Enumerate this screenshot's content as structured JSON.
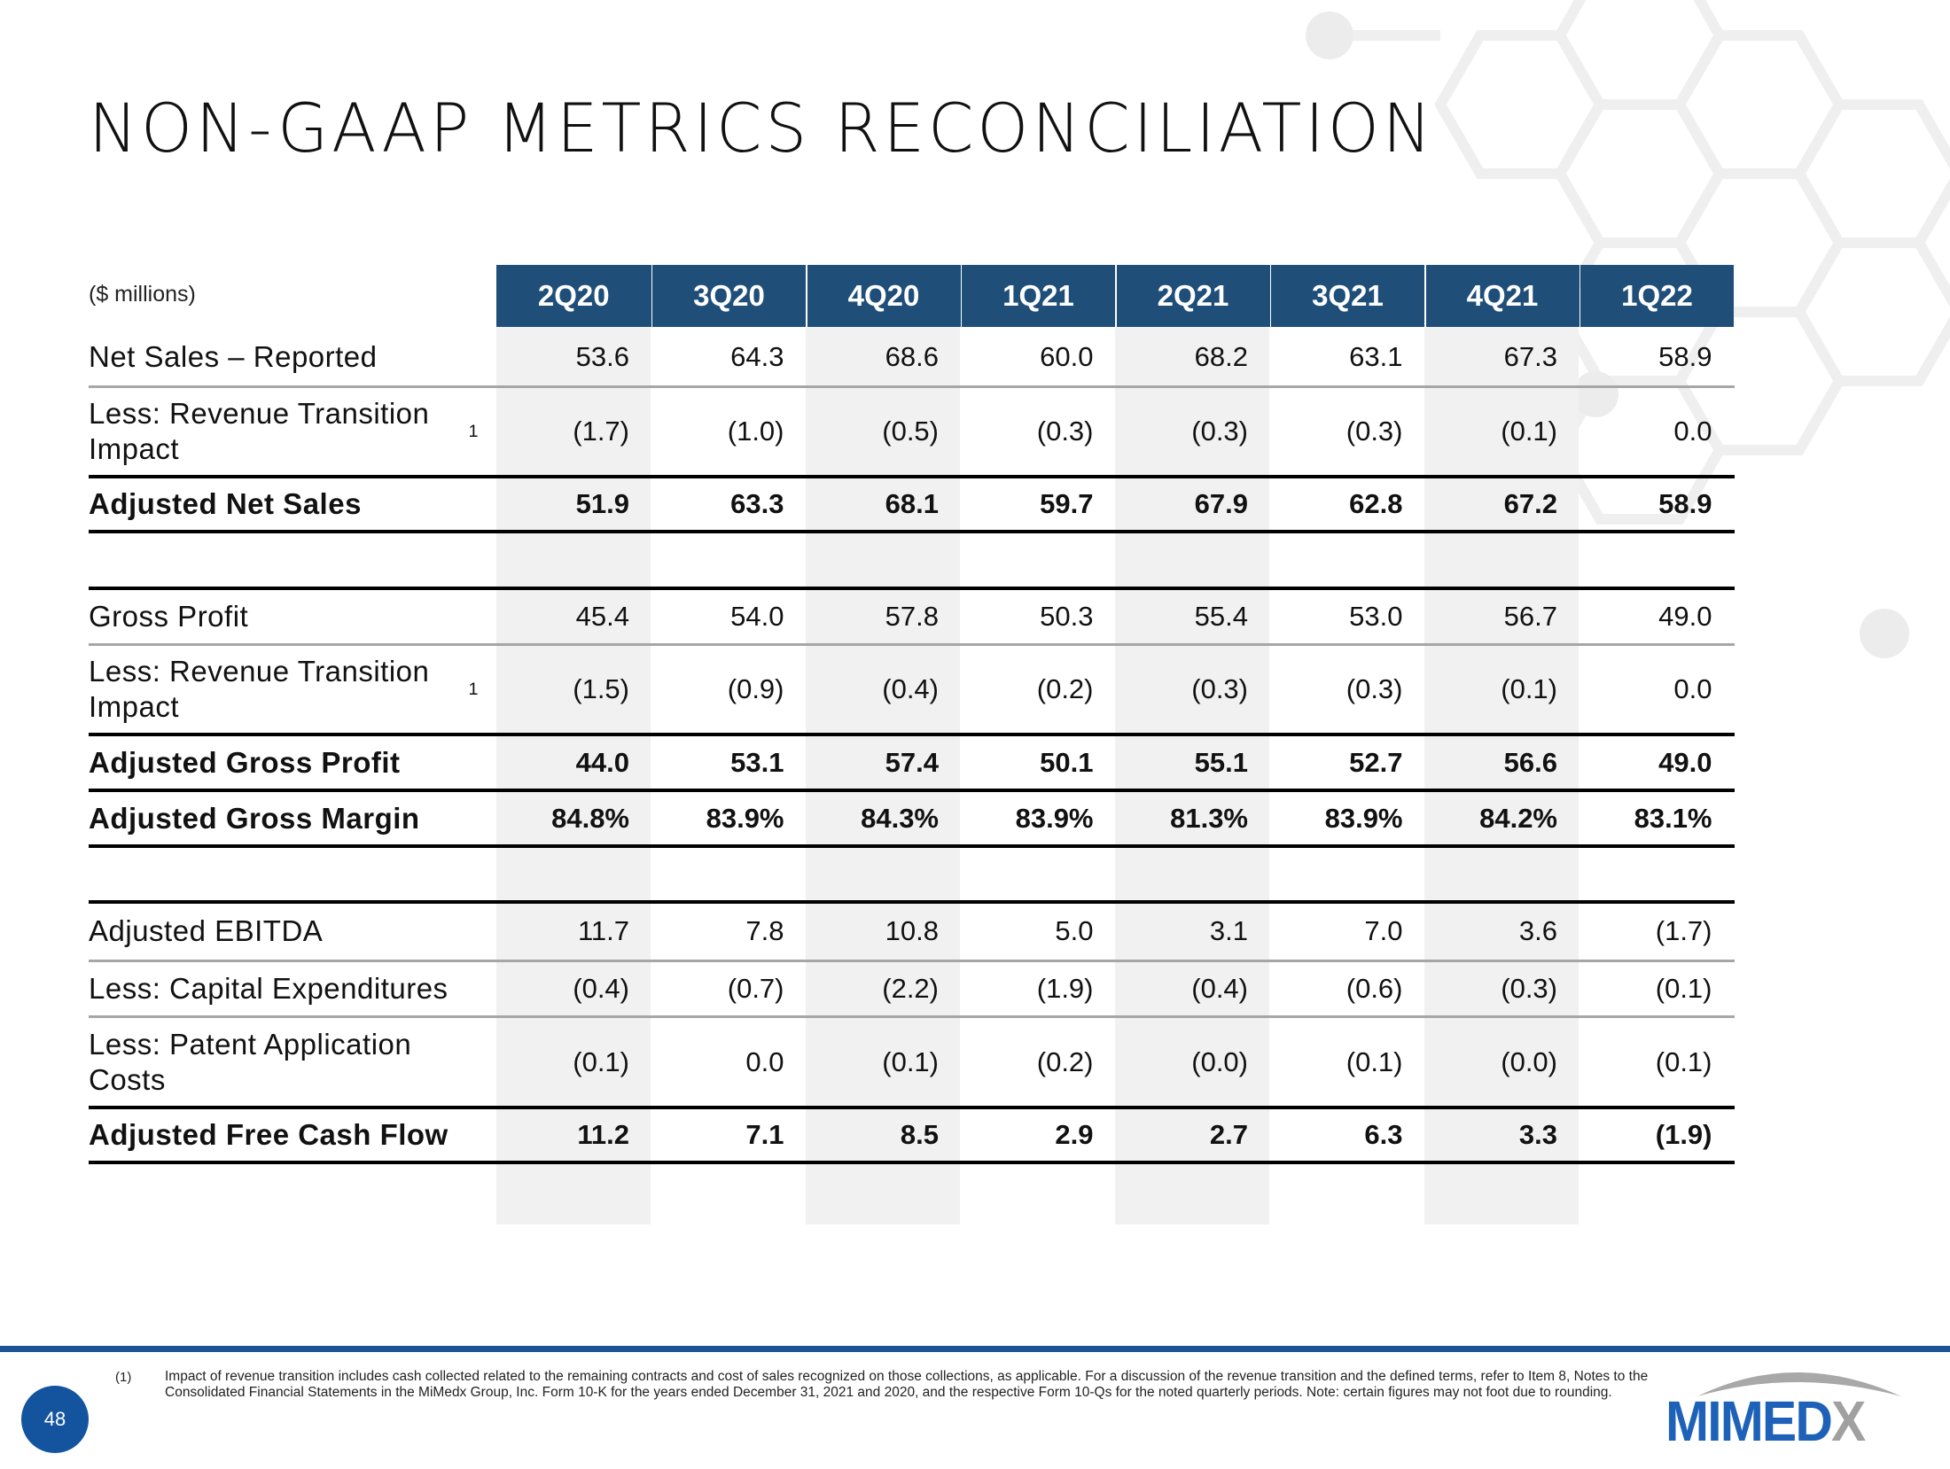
{
  "slide": {
    "title": "NON-GAAP METRICS RECONCILIATION",
    "units_label": "($ millions)",
    "page_number": "48"
  },
  "table": {
    "columns": [
      "2Q20",
      "3Q20",
      "4Q20",
      "1Q21",
      "2Q21",
      "3Q21",
      "4Q21",
      "1Q22"
    ],
    "rows": [
      {
        "label": "Net Sales – Reported",
        "footnote": "",
        "values": [
          "53.6",
          "64.3",
          "68.6",
          "60.0",
          "68.2",
          "63.1",
          "67.3",
          "58.9"
        ],
        "bold": false
      },
      {
        "label": "Less: Revenue Transition Impact",
        "footnote": "1",
        "values": [
          "(1.7)",
          "(1.0)",
          "(0.5)",
          "(0.3)",
          "(0.3)",
          "(0.3)",
          "(0.1)",
          "0.0"
        ],
        "bold": false
      },
      {
        "label": "Adjusted Net Sales",
        "footnote": "",
        "values": [
          "51.9",
          "63.3",
          "68.1",
          "59.7",
          "67.9",
          "62.8",
          "67.2",
          "58.9"
        ],
        "bold": true
      },
      {
        "label": "Gross Profit",
        "footnote": "",
        "values": [
          "45.4",
          "54.0",
          "57.8",
          "50.3",
          "55.4",
          "53.0",
          "56.7",
          "49.0"
        ],
        "bold": false
      },
      {
        "label": "Less: Revenue Transition Impact",
        "footnote": "1",
        "values": [
          "(1.5)",
          "(0.9)",
          "(0.4)",
          "(0.2)",
          "(0.3)",
          "(0.3)",
          "(0.1)",
          "0.0"
        ],
        "bold": false
      },
      {
        "label": "Adjusted Gross Profit",
        "footnote": "",
        "values": [
          "44.0",
          "53.1",
          "57.4",
          "50.1",
          "55.1",
          "52.7",
          "56.6",
          "49.0"
        ],
        "bold": true
      },
      {
        "label": "Adjusted Gross Margin",
        "footnote": "",
        "values": [
          "84.8%",
          "83.9%",
          "84.3%",
          "83.9%",
          "81.3%",
          "83.9%",
          "84.2%",
          "83.1%"
        ],
        "bold": true
      },
      {
        "label": "Adjusted EBITDA",
        "footnote": "",
        "values": [
          "11.7",
          "7.8",
          "10.8",
          "5.0",
          "3.1",
          "7.0",
          "3.6",
          "(1.7)"
        ],
        "bold": false
      },
      {
        "label": "Less: Capital Expenditures",
        "footnote": "",
        "values": [
          "(0.4)",
          "(0.7)",
          "(2.2)",
          "(1.9)",
          "(0.4)",
          "(0.6)",
          "(0.3)",
          "(0.1)"
        ],
        "bold": false
      },
      {
        "label": "Less: Patent Application Costs",
        "footnote": "",
        "values": [
          "(0.1)",
          "0.0",
          "(0.1)",
          "(0.2)",
          "(0.0)",
          "(0.1)",
          "(0.0)",
          "(0.1)"
        ],
        "bold": false
      },
      {
        "label": "Adjusted Free Cash Flow",
        "footnote": "",
        "values": [
          "11.2",
          "7.1",
          "8.5",
          "2.9",
          "2.7",
          "6.3",
          "3.3",
          "(1.9)"
        ],
        "bold": true
      }
    ]
  },
  "footnote": {
    "marker": "(1)",
    "text": "Impact of revenue transition includes cash collected related to the remaining contracts and cost of sales recognized on those collections, as applicable. For a discussion of the revenue transition and the defined terms, refer to Item 8, Notes to the Consolidated Financial Statements in the MiMedx Group, Inc. Form 10-K for the years ended December 31, 2021 and 2020, and the respective Form 10-Qs for the noted quarterly periods. Note: certain figures may not foot due to rounding."
  },
  "logo": {
    "text_main": "MIMED",
    "text_accent": "X"
  },
  "colors": {
    "header_bg": "#1f4e79",
    "column_shade": "#f1f1f1",
    "footer_rule": "#1d5295",
    "logo_blue": "#1d62b8",
    "logo_gray": "#a0a0a0"
  }
}
